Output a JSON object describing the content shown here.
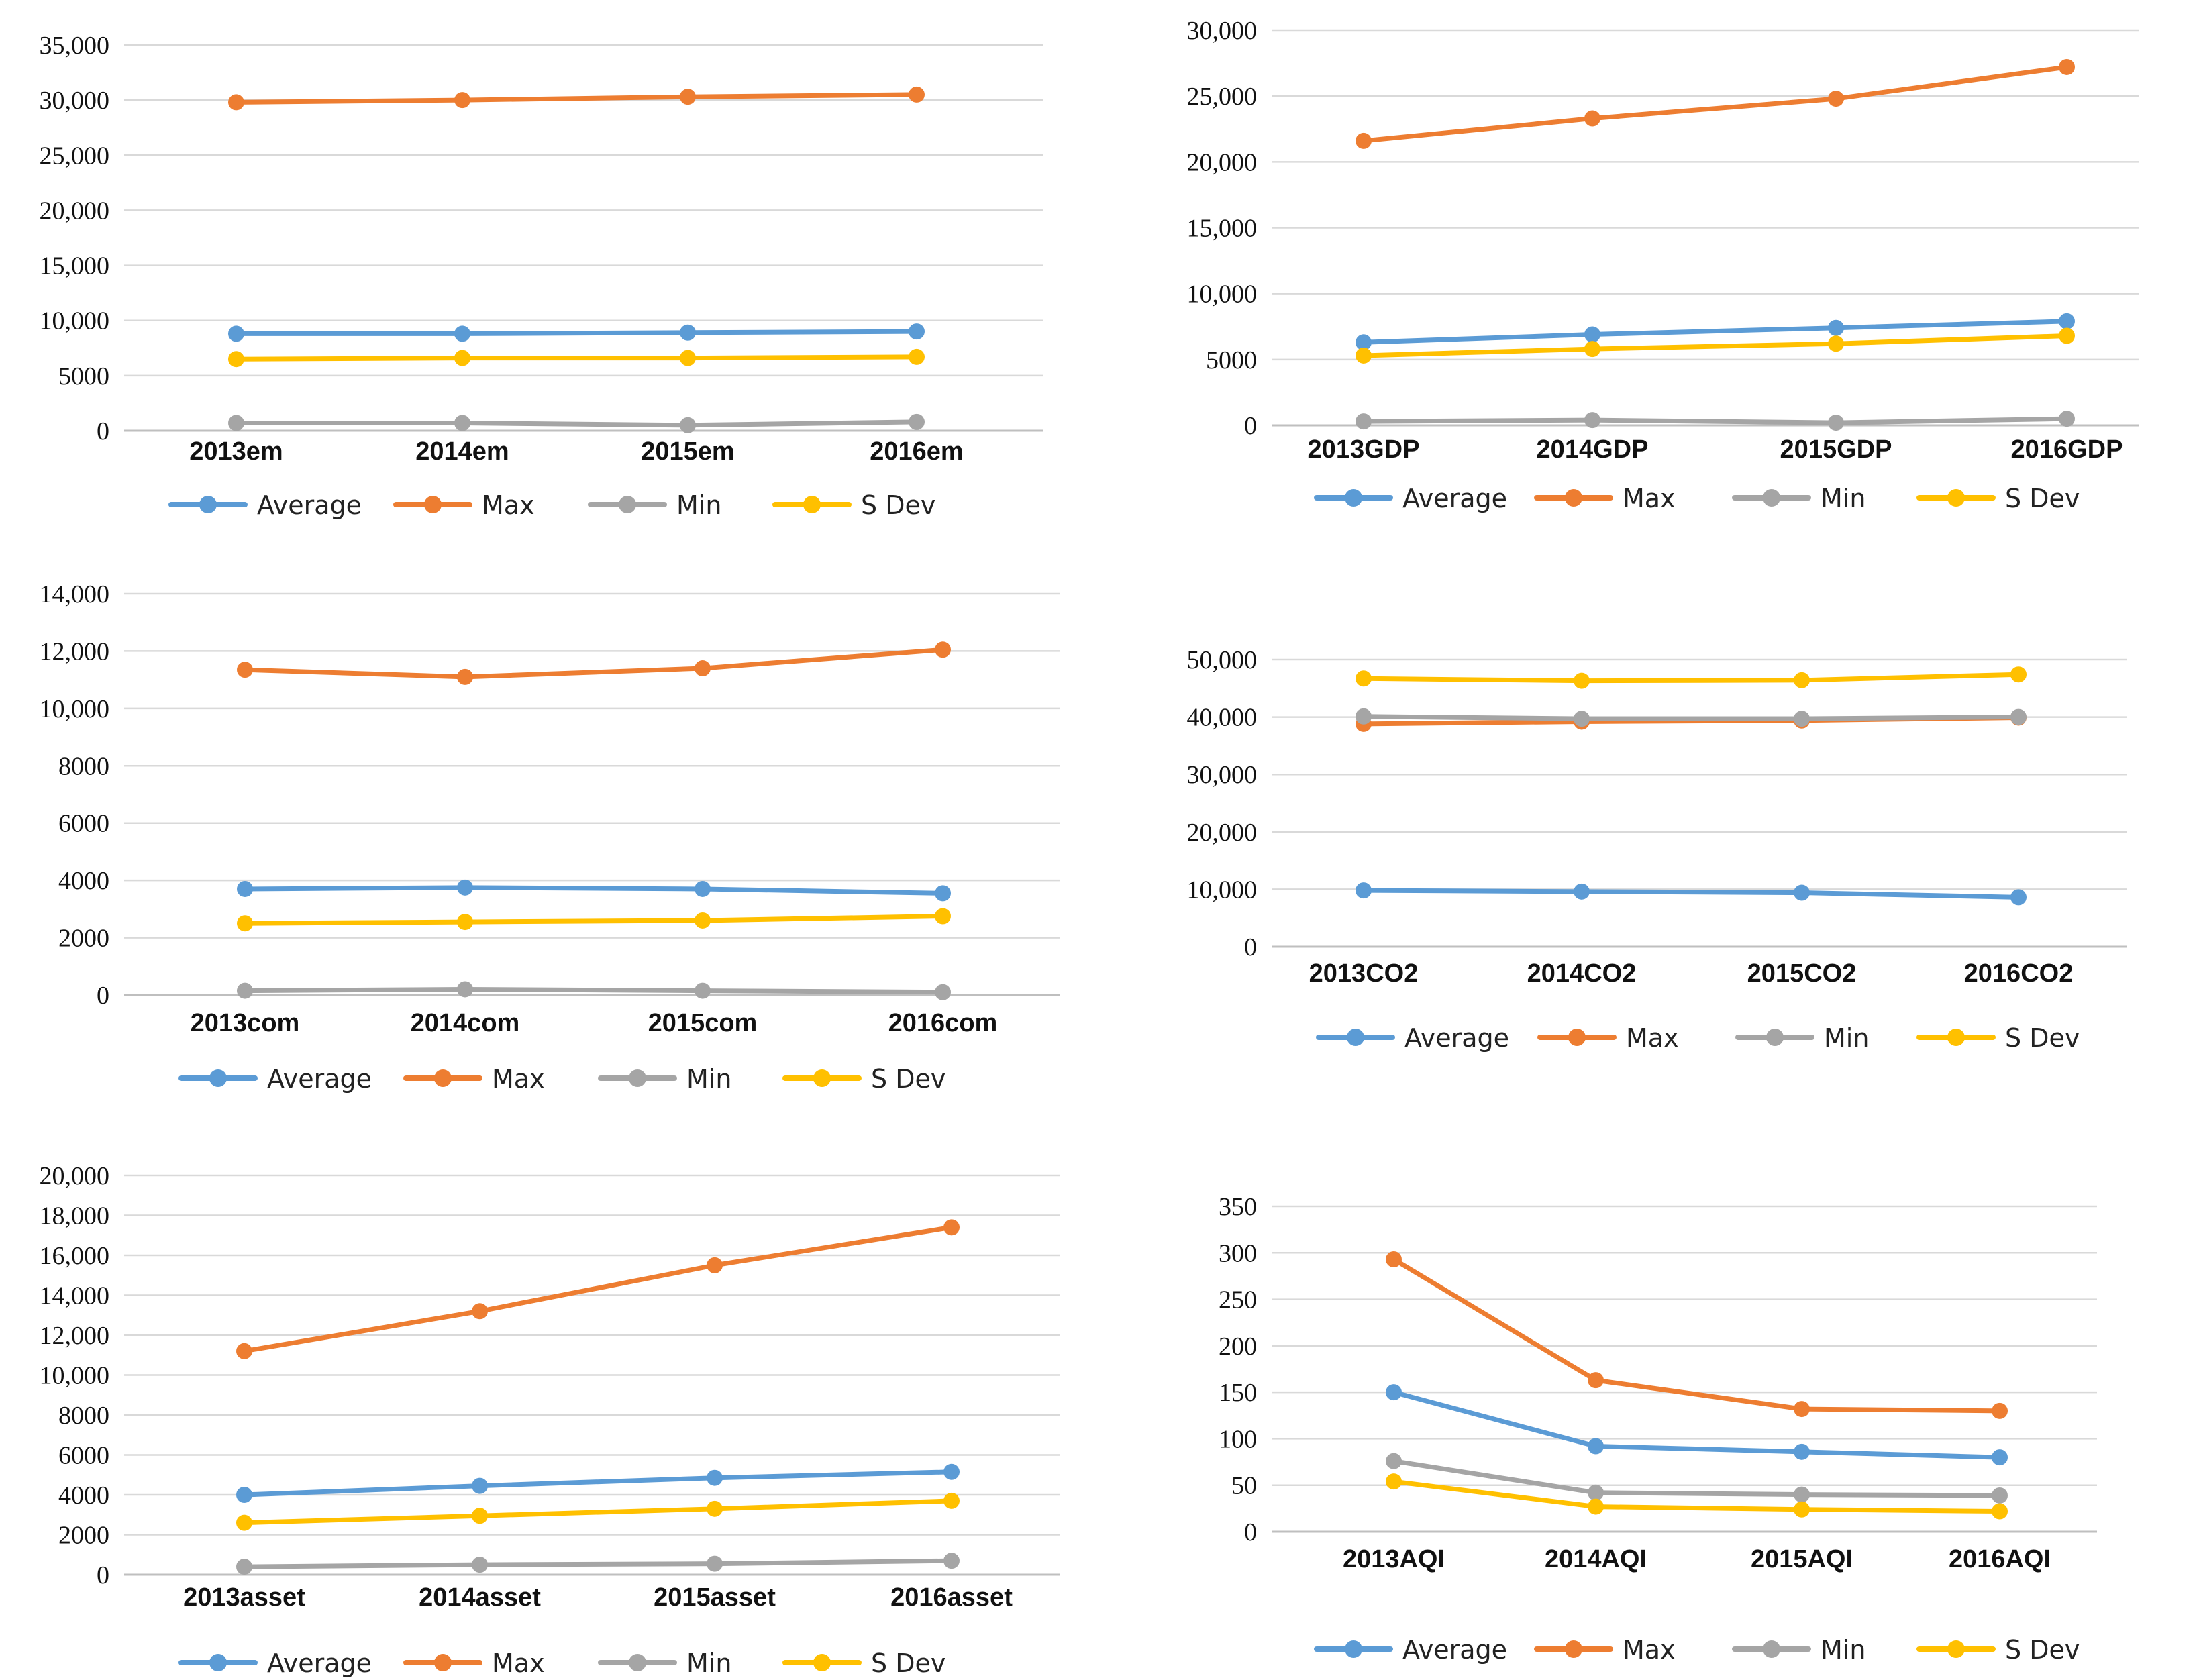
{
  "colors": {
    "average": "#5b9bd5",
    "max": "#ed7d31",
    "min": "#a5a5a5",
    "sdev": "#ffc000"
  },
  "chart_data": [
    {
      "id": "em",
      "type": "line",
      "title": "",
      "categories": [
        "2013em",
        "2014em",
        "2015em",
        "2016em"
      ],
      "ylim": [
        0,
        35000
      ],
      "yticks": [
        0,
        5000,
        10000,
        15000,
        20000,
        25000,
        30000,
        35000
      ],
      "ytick_labels": [
        "0",
        "5000",
        "10,000",
        "15,000",
        "20,000",
        "25,000",
        "30,000",
        "35,000"
      ],
      "legend_position": "bottom",
      "series": [
        {
          "name": "Average",
          "key": "average",
          "values": [
            8800,
            8800,
            8900,
            9000
          ]
        },
        {
          "name": "Max",
          "key": "max",
          "values": [
            29800,
            30000,
            30300,
            30500
          ]
        },
        {
          "name": "Min",
          "key": "min",
          "values": [
            700,
            700,
            500,
            800
          ]
        },
        {
          "name": "S Dev",
          "key": "sdev",
          "values": [
            6500,
            6600,
            6600,
            6700
          ]
        }
      ]
    },
    {
      "id": "gdp",
      "type": "line",
      "title": "",
      "categories": [
        "2013GDP",
        "2014GDP",
        "2015GDP",
        "2016GDP"
      ],
      "ylim": [
        0,
        30000
      ],
      "yticks": [
        0,
        5000,
        10000,
        15000,
        20000,
        25000,
        30000
      ],
      "ytick_labels": [
        "0",
        "5000",
        "10,000",
        "15,000",
        "20,000",
        "25,000",
        "30,000"
      ],
      "legend_position": "bottom",
      "series": [
        {
          "name": "Average",
          "key": "average",
          "values": [
            6300,
            6900,
            7400,
            7900
          ]
        },
        {
          "name": "Max",
          "key": "max",
          "values": [
            21600,
            23300,
            24800,
            27200
          ]
        },
        {
          "name": "Min",
          "key": "min",
          "values": [
            300,
            400,
            200,
            500
          ]
        },
        {
          "name": "S Dev",
          "key": "sdev",
          "values": [
            5300,
            5800,
            6200,
            6800
          ]
        }
      ]
    },
    {
      "id": "com",
      "type": "line",
      "title": "",
      "categories": [
        "2013com",
        "2014com",
        "2015com",
        "2016com"
      ],
      "ylim": [
        0,
        14000
      ],
      "yticks": [
        0,
        2000,
        4000,
        6000,
        8000,
        10000,
        12000,
        14000
      ],
      "ytick_labels": [
        "0",
        "2000",
        "4000",
        "6000",
        "8000",
        "10,000",
        "12,000",
        "14,000"
      ],
      "legend_position": "bottom",
      "series": [
        {
          "name": "Average",
          "key": "average",
          "values": [
            3700,
            3750,
            3700,
            3550
          ]
        },
        {
          "name": "Max",
          "key": "max",
          "values": [
            11350,
            11100,
            11400,
            12050
          ]
        },
        {
          "name": "Min",
          "key": "min",
          "values": [
            150,
            200,
            150,
            100
          ]
        },
        {
          "name": "S Dev",
          "key": "sdev",
          "values": [
            2500,
            2550,
            2600,
            2750
          ]
        }
      ]
    },
    {
      "id": "co2",
      "type": "line",
      "title": "",
      "categories": [
        "2013CO2",
        "2014CO2",
        "2015CO2",
        "2016CO2"
      ],
      "ylim": [
        0,
        50000
      ],
      "yticks": [
        0,
        10000,
        20000,
        30000,
        40000,
        50000
      ],
      "ytick_labels": [
        "0",
        "10,000",
        "20,000",
        "30,000",
        "40,000",
        "50,000"
      ],
      "legend_position": "bottom",
      "series": [
        {
          "name": "Average",
          "key": "average",
          "values": [
            9800,
            9600,
            9400,
            8600
          ]
        },
        {
          "name": "Max",
          "key": "max",
          "values": [
            38800,
            39200,
            39400,
            39900
          ]
        },
        {
          "name": "Min",
          "key": "min",
          "values": [
            40100,
            39700,
            39700,
            40000
          ]
        },
        {
          "name": "S Dev",
          "key": "sdev",
          "values": [
            46700,
            46300,
            46400,
            47400
          ]
        }
      ]
    },
    {
      "id": "asset",
      "type": "line",
      "title": "",
      "categories": [
        "2013asset",
        "2014asset",
        "2015asset",
        "2016asset"
      ],
      "ylim": [
        0,
        20000
      ],
      "yticks": [
        0,
        2000,
        4000,
        6000,
        8000,
        10000,
        12000,
        14000,
        16000,
        18000,
        20000
      ],
      "ytick_labels": [
        "0",
        "2000",
        "4000",
        "6000",
        "8000",
        "10,000",
        "12,000",
        "14,000",
        "16,000",
        "18,000",
        "20,000"
      ],
      "legend_position": "bottom",
      "series": [
        {
          "name": "Average",
          "key": "average",
          "values": [
            4000,
            4450,
            4850,
            5150
          ]
        },
        {
          "name": "Max",
          "key": "max",
          "values": [
            11200,
            13200,
            15500,
            17400
          ]
        },
        {
          "name": "Min",
          "key": "min",
          "values": [
            400,
            500,
            550,
            700
          ]
        },
        {
          "name": "S Dev",
          "key": "sdev",
          "values": [
            2600,
            2950,
            3300,
            3700
          ]
        }
      ]
    },
    {
      "id": "aqi",
      "type": "line",
      "title": "",
      "categories": [
        "2013AQI",
        "2014AQI",
        "2015AQI",
        "2016AQI"
      ],
      "ylim": [
        0,
        350
      ],
      "yticks": [
        0,
        50,
        100,
        150,
        200,
        250,
        300,
        350
      ],
      "ytick_labels": [
        "0",
        "50",
        "100",
        "150",
        "200",
        "250",
        "300",
        "350"
      ],
      "legend_position": "bottom",
      "series": [
        {
          "name": "Average",
          "key": "average",
          "values": [
            150,
            92,
            86,
            80
          ]
        },
        {
          "name": "Max",
          "key": "max",
          "values": [
            293,
            163,
            132,
            130
          ]
        },
        {
          "name": "Min",
          "key": "min",
          "values": [
            76,
            42,
            40,
            39
          ]
        },
        {
          "name": "S Dev",
          "key": "sdev",
          "values": [
            54,
            27,
            24,
            22
          ]
        }
      ]
    }
  ]
}
